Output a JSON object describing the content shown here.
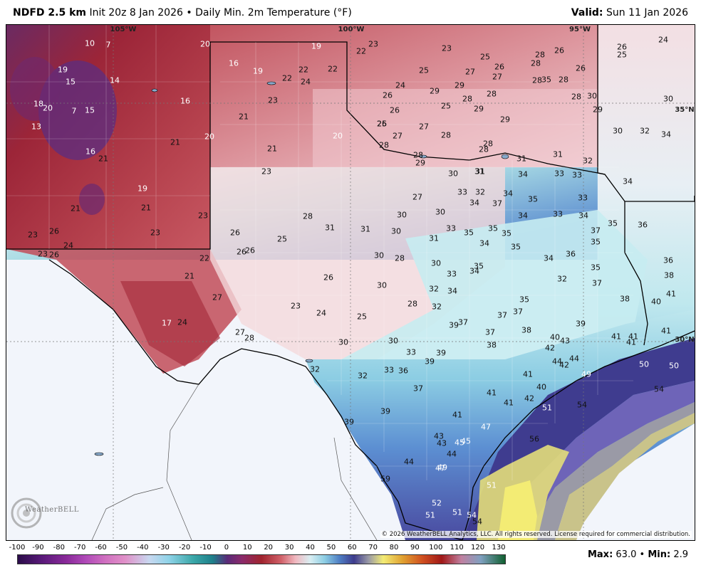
{
  "header": {
    "model": "NDFD 2.5 km",
    "init": "Init 20z 8 Jan 2026",
    "bullet": "•",
    "product": "Daily Min. 2m Temperature (°F)",
    "valid_label": "Valid:",
    "valid_value": "Sun 11 Jan 2026"
  },
  "coordinate_labels": [
    {
      "text": "105°W",
      "lon": -105
    },
    {
      "text": "100°W",
      "lon": -100
    },
    {
      "text": "95°W",
      "lon": -95
    },
    {
      "text": "35°N",
      "lat": 35
    },
    {
      "text": "30°N",
      "lat": 30
    }
  ],
  "temperature_labels": [
    {
      "v": "10",
      "c": "w"
    },
    {
      "v": "7",
      "c": "w"
    },
    {
      "v": "20",
      "c": "w"
    },
    {
      "v": "19",
      "c": "w"
    },
    {
      "v": "22",
      "c": "k"
    },
    {
      "v": "23",
      "c": "k"
    },
    {
      "v": "23",
      "c": "k"
    },
    {
      "v": "25",
      "c": "k"
    },
    {
      "v": "28",
      "c": "k"
    },
    {
      "v": "26",
      "c": "k"
    },
    {
      "v": "26",
      "c": "k"
    },
    {
      "v": "24",
      "c": "k"
    },
    {
      "v": "25",
      "c": "k"
    },
    {
      "v": "19",
      "c": "w"
    },
    {
      "v": "15",
      "c": "w"
    },
    {
      "v": "14",
      "c": "w"
    },
    {
      "v": "16",
      "c": "w"
    },
    {
      "v": "19",
      "c": "w"
    },
    {
      "v": "22",
      "c": "k"
    },
    {
      "v": "22",
      "c": "k"
    },
    {
      "v": "22",
      "c": "k"
    },
    {
      "v": "24",
      "c": "k"
    },
    {
      "v": "25",
      "c": "k"
    },
    {
      "v": "27",
      "c": "k"
    },
    {
      "v": "26",
      "c": "k"
    },
    {
      "v": "27",
      "c": "k"
    },
    {
      "v": "28",
      "c": "k"
    },
    {
      "v": "28",
      "c": "k"
    },
    {
      "v": "26",
      "c": "k"
    },
    {
      "v": "24",
      "c": "k"
    },
    {
      "v": "29",
      "c": "k"
    },
    {
      "v": "28",
      "c": "k"
    },
    {
      "v": "28",
      "c": "k"
    },
    {
      "v": "30",
      "c": "k"
    },
    {
      "v": "30",
      "c": "k"
    },
    {
      "v": "26",
      "c": "k"
    },
    {
      "v": "29",
      "c": "k"
    },
    {
      "v": "28",
      "c": "k"
    },
    {
      "v": "16",
      "c": "w"
    },
    {
      "v": "18",
      "c": "w"
    },
    {
      "v": "20",
      "c": "w"
    },
    {
      "v": "7",
      "c": "w"
    },
    {
      "v": "15",
      "c": "w"
    },
    {
      "v": "23",
      "c": "k"
    },
    {
      "v": "26",
      "c": "k"
    },
    {
      "v": "25",
      "c": "k"
    },
    {
      "v": "29",
      "c": "k"
    },
    {
      "v": "13",
      "c": "w"
    },
    {
      "v": "21",
      "c": "k"
    },
    {
      "v": "29",
      "c": "k"
    },
    {
      "v": "28",
      "c": "k"
    },
    {
      "v": "35",
      "c": "k"
    },
    {
      "v": "26",
      "c": "k"
    },
    {
      "v": "27",
      "c": "k"
    },
    {
      "v": "25",
      "c": "k"
    },
    {
      "v": "28",
      "c": "k"
    },
    {
      "v": "20",
      "c": "w"
    },
    {
      "v": "21",
      "c": "k"
    },
    {
      "v": "27",
      "c": "k"
    },
    {
      "v": "28",
      "c": "k"
    },
    {
      "v": "28",
      "c": "k"
    },
    {
      "v": "29",
      "c": "k"
    },
    {
      "v": "30",
      "c": "k"
    },
    {
      "v": "32",
      "c": "k"
    },
    {
      "v": "34",
      "c": "k"
    },
    {
      "v": "20",
      "c": "w"
    },
    {
      "v": "16",
      "c": "w"
    },
    {
      "v": "21",
      "c": "k"
    },
    {
      "v": "28",
      "c": "k"
    },
    {
      "v": "28",
      "c": "k"
    },
    {
      "v": "29",
      "c": "k"
    },
    {
      "v": "31",
      "c": "k"
    },
    {
      "v": "31",
      "c": "k"
    },
    {
      "v": "31",
      "c": "k"
    },
    {
      "v": "32",
      "c": "k"
    },
    {
      "v": "23",
      "c": "k"
    },
    {
      "v": "30",
      "c": "k"
    },
    {
      "v": "31",
      "c": "k"
    },
    {
      "v": "34",
      "c": "k"
    },
    {
      "v": "33",
      "c": "k"
    },
    {
      "v": "33",
      "c": "k"
    },
    {
      "v": "34",
      "c": "k"
    },
    {
      "v": "21",
      "c": "k"
    },
    {
      "v": "19",
      "c": "w"
    },
    {
      "v": "27",
      "c": "k"
    },
    {
      "v": "33",
      "c": "k"
    },
    {
      "v": "32",
      "c": "k"
    },
    {
      "v": "34",
      "c": "k"
    },
    {
      "v": "35",
      "c": "k"
    },
    {
      "v": "33",
      "c": "k"
    },
    {
      "v": "21",
      "c": "k"
    },
    {
      "v": "21",
      "c": "k"
    },
    {
      "v": "30",
      "c": "k"
    },
    {
      "v": "30",
      "c": "k"
    },
    {
      "v": "34",
      "c": "k"
    },
    {
      "v": "37",
      "c": "k"
    },
    {
      "v": "34",
      "c": "k"
    },
    {
      "v": "33",
      "c": "k"
    },
    {
      "v": "34",
      "c": "k"
    },
    {
      "v": "23",
      "c": "k"
    },
    {
      "v": "28",
      "c": "k"
    },
    {
      "v": "36",
      "c": "k"
    },
    {
      "v": "23",
      "c": "k"
    },
    {
      "v": "26",
      "c": "k"
    },
    {
      "v": "23",
      "c": "k"
    },
    {
      "v": "31",
      "c": "k"
    },
    {
      "v": "31",
      "c": "k"
    },
    {
      "v": "30",
      "c": "k"
    },
    {
      "v": "31",
      "c": "k"
    },
    {
      "v": "33",
      "c": "k"
    },
    {
      "v": "35",
      "c": "k"
    },
    {
      "v": "35",
      "c": "k"
    },
    {
      "v": "35",
      "c": "k"
    },
    {
      "v": "37",
      "c": "k"
    },
    {
      "v": "26",
      "c": "k"
    },
    {
      "v": "25",
      "c": "k"
    },
    {
      "v": "24",
      "c": "k"
    },
    {
      "v": "35",
      "c": "k"
    },
    {
      "v": "35",
      "c": "k"
    },
    {
      "v": "34",
      "c": "k"
    },
    {
      "v": "35",
      "c": "k"
    },
    {
      "v": "36",
      "c": "k"
    },
    {
      "v": "23",
      "c": "k"
    },
    {
      "v": "26",
      "c": "k"
    },
    {
      "v": "26",
      "c": "k"
    },
    {
      "v": "26",
      "c": "k"
    },
    {
      "v": "22",
      "c": "k"
    },
    {
      "v": "30",
      "c": "k"
    },
    {
      "v": "28",
      "c": "k"
    },
    {
      "v": "34",
      "c": "k"
    },
    {
      "v": "36",
      "c": "k"
    },
    {
      "v": "30",
      "c": "k"
    },
    {
      "v": "33",
      "c": "k"
    },
    {
      "v": "34",
      "c": "k"
    },
    {
      "v": "35",
      "c": "k"
    },
    {
      "v": "21",
      "c": "k"
    },
    {
      "v": "32",
      "c": "k"
    },
    {
      "v": "35",
      "c": "k"
    },
    {
      "v": "38",
      "c": "k"
    },
    {
      "v": "26",
      "c": "k"
    },
    {
      "v": "30",
      "c": "k"
    },
    {
      "v": "32",
      "c": "k"
    },
    {
      "v": "34",
      "c": "k"
    },
    {
      "v": "37",
      "c": "k"
    },
    {
      "v": "41",
      "c": "k"
    },
    {
      "v": "27",
      "c": "k"
    },
    {
      "v": "35",
      "c": "k"
    },
    {
      "v": "38",
      "c": "k"
    },
    {
      "v": "40",
      "c": "k"
    },
    {
      "v": "23",
      "c": "k"
    },
    {
      "v": "24",
      "c": "k"
    },
    {
      "v": "25",
      "c": "k"
    },
    {
      "v": "28",
      "c": "k"
    },
    {
      "v": "32",
      "c": "k"
    },
    {
      "v": "37",
      "c": "k"
    },
    {
      "v": "37",
      "c": "k"
    },
    {
      "v": "17",
      "c": "w"
    },
    {
      "v": "24",
      "c": "k"
    },
    {
      "v": "39",
      "c": "k"
    },
    {
      "v": "37",
      "c": "k"
    },
    {
      "v": "38",
      "c": "k"
    },
    {
      "v": "39",
      "c": "k"
    },
    {
      "v": "41",
      "c": "k"
    },
    {
      "v": "27",
      "c": "k"
    },
    {
      "v": "28",
      "c": "k"
    },
    {
      "v": "37",
      "c": "k"
    },
    {
      "v": "40",
      "c": "k"
    },
    {
      "v": "43",
      "c": "k"
    },
    {
      "v": "41",
      "c": "k"
    },
    {
      "v": "41",
      "c": "k"
    },
    {
      "v": "41",
      "c": "k"
    },
    {
      "v": "30",
      "c": "k"
    },
    {
      "v": "30",
      "c": "k"
    },
    {
      "v": "38",
      "c": "k"
    },
    {
      "v": "42",
      "c": "k"
    },
    {
      "v": "44",
      "c": "k"
    },
    {
      "v": "33",
      "c": "k"
    },
    {
      "v": "39",
      "c": "k"
    },
    {
      "v": "39",
      "c": "k"
    },
    {
      "v": "44",
      "c": "k"
    },
    {
      "v": "42",
      "c": "k"
    },
    {
      "v": "32",
      "c": "k"
    },
    {
      "v": "32",
      "c": "k"
    },
    {
      "v": "33",
      "c": "k"
    },
    {
      "v": "36",
      "c": "k"
    },
    {
      "v": "41",
      "c": "k"
    },
    {
      "v": "49",
      "c": "w"
    },
    {
      "v": "50",
      "c": "w"
    },
    {
      "v": "50",
      "c": "w"
    },
    {
      "v": "37",
      "c": "k"
    },
    {
      "v": "40",
      "c": "k"
    },
    {
      "v": "41",
      "c": "k"
    },
    {
      "v": "42",
      "c": "k"
    },
    {
      "v": "54",
      "c": "k"
    },
    {
      "v": "41",
      "c": "k"
    },
    {
      "v": "51",
      "c": "w"
    },
    {
      "v": "54",
      "c": "k"
    },
    {
      "v": "39",
      "c": "k"
    },
    {
      "v": "41",
      "c": "k"
    },
    {
      "v": "39",
      "c": "k"
    },
    {
      "v": "47",
      "c": "w"
    },
    {
      "v": "43",
      "c": "k"
    },
    {
      "v": "45",
      "c": "w"
    },
    {
      "v": "44",
      "c": "k"
    },
    {
      "v": "56",
      "c": "k"
    },
    {
      "v": "43",
      "c": "k"
    },
    {
      "v": "44",
      "c": "k"
    },
    {
      "v": "45",
      "c": "w"
    },
    {
      "v": "47",
      "c": "w"
    },
    {
      "v": "49",
      "c": "w"
    },
    {
      "v": "59",
      "c": "k"
    },
    {
      "v": "51",
      "c": "w"
    },
    {
      "v": "52",
      "c": "w"
    },
    {
      "v": "51",
      "c": "w"
    },
    {
      "v": "51",
      "c": "w"
    },
    {
      "v": "54",
      "c": "w"
    },
    {
      "v": "54",
      "c": "k"
    }
  ],
  "copyright": "© 2026 WeatherBELL Analytics, LLC. All rights reserved. License required for commercial distribution.",
  "logo": {
    "text": "WeatherBELL",
    "icon": "swirl-logo-icon"
  },
  "color_scale": {
    "ticks": [
      "-100",
      "-90",
      "-80",
      "-70",
      "-60",
      "-50",
      "-40",
      "-30",
      "-20",
      "-10",
      "0",
      "10",
      "20",
      "30",
      "40",
      "50",
      "60",
      "70",
      "80",
      "90",
      "100",
      "110",
      "120",
      "130"
    ],
    "unit": "°F"
  },
  "stats": {
    "max_label": "Max",
    "max_value": "63.0",
    "bullet": "•",
    "min_label": "Min",
    "min_value": "2.9"
  },
  "colors": {
    "cold_purple": "#5a2a78",
    "deep_red": "#a0242e",
    "pink": "#e9a7ae",
    "light_pink": "#f5d6d9",
    "pale_cyan": "#c6ecef",
    "blue": "#4f7fc4",
    "indigo": "#3d3b8c",
    "gray": "#9a9aa6",
    "yellow": "#f3ec74"
  }
}
